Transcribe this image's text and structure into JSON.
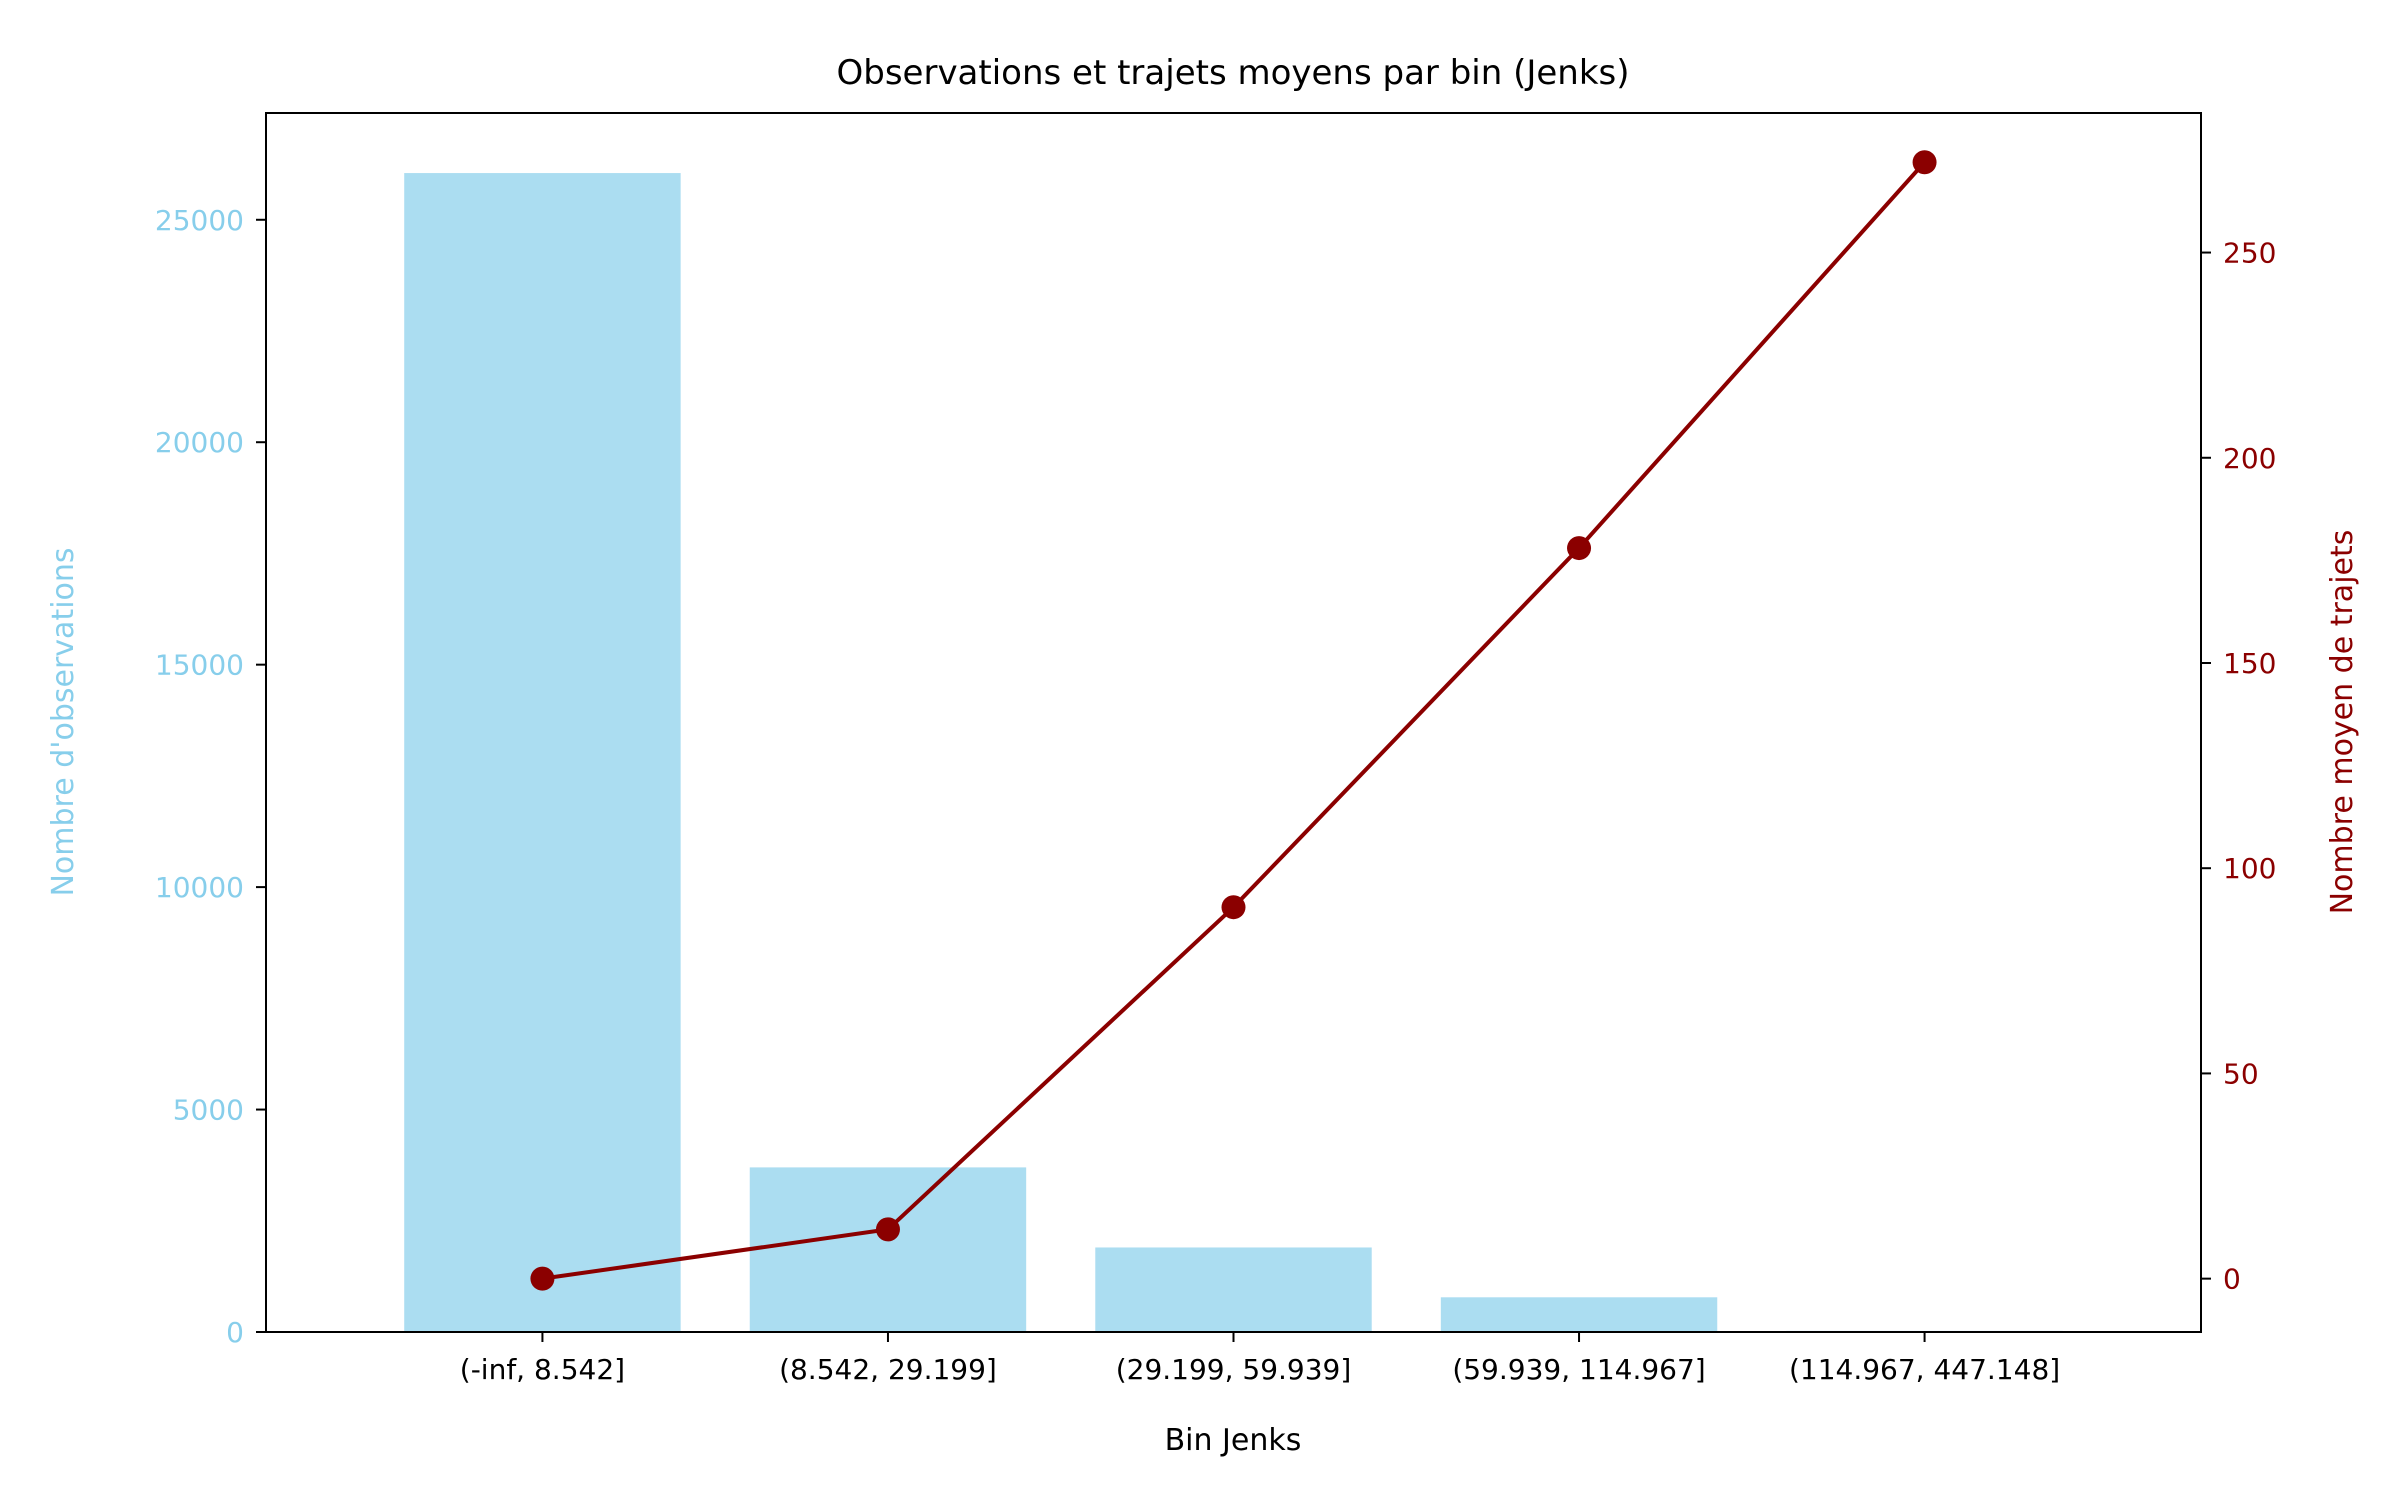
{
  "chart_data": {
    "type": "bar",
    "title": "Observations et trajets moyens par bin (Jenks)",
    "xlabel": "Bin Jenks",
    "ylabel": "Nombre d'observations",
    "y2label": "Nombre moyen de trajets",
    "categories": [
      "(-inf, 8.542]",
      "(8.542, 29.199]",
      "(29.199, 59.939]",
      "(59.939, 114.967]",
      "(114.967, 447.148]"
    ],
    "series": [
      {
        "name": "Nombre d'observations",
        "type": "bar",
        "axis": "left",
        "values": [
          26050,
          3700,
          1900,
          780,
          25
        ]
      },
      {
        "name": "Nombre moyen de trajets",
        "type": "line",
        "axis": "right",
        "values": [
          0,
          12,
          90.5,
          178,
          272
        ]
      }
    ],
    "ylim": [
      0,
      27400
    ],
    "y2lim": [
      -13,
      284
    ],
    "yticks": [
      0,
      5000,
      10000,
      15000,
      20000,
      25000
    ],
    "y2ticks": [
      0,
      50,
      100,
      150,
      200,
      250
    ],
    "grid": false,
    "colors": {
      "bars": "#87ceeb",
      "line": "#8b0000",
      "left_axis": "#87ceeb",
      "right_axis": "#8b0000"
    }
  }
}
